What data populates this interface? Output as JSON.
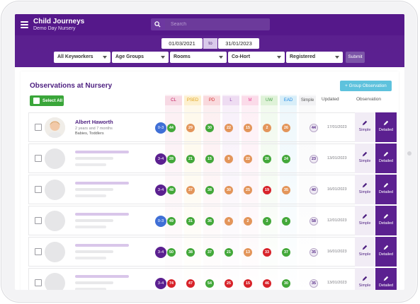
{
  "app": {
    "title": "Child Journeys",
    "subtitle": "Demo Day Nursery"
  },
  "search": {
    "placeholder": "Search"
  },
  "dates": {
    "from": "01/03/2021",
    "to_label": "to",
    "to": "31/01/2023"
  },
  "filters": [
    {
      "label": "All Keyworkers"
    },
    {
      "label": "Age Groups"
    },
    {
      "label": "Rooms"
    },
    {
      "label": "Co-Hort"
    },
    {
      "label": "Registered"
    }
  ],
  "submit_label": "Submit",
  "page_title": "Observations at Nursery",
  "group_observation_label": "+  Group Observation",
  "select_all_label": "Select All",
  "columns": [
    {
      "label": "CL",
      "color": "#f7d9e4",
      "text": "#c2185b"
    },
    {
      "label": "PSED",
      "color": "#fdf0cf",
      "text": "#e0a21b"
    },
    {
      "label": "PD",
      "color": "#f9d9dd",
      "text": "#d32f2f"
    },
    {
      "label": "L",
      "color": "#eedcf2",
      "text": "#8e44ad"
    },
    {
      "label": "M",
      "color": "#fbdbe9",
      "text": "#e84393"
    },
    {
      "label": "UW",
      "color": "#dff2d8",
      "text": "#43a047"
    },
    {
      "label": "EAD",
      "color": "#d8eef8",
      "text": "#1e88e5"
    },
    {
      "label": "Simple",
      "color": "#f2f2f4",
      "text": "#555555"
    }
  ],
  "updated_header": "Updated",
  "observation_header": "Observation",
  "btn_simple": "Simple",
  "btn_detailed": "Detailed",
  "colors": {
    "green": "#43a83a",
    "orange": "#e3955a",
    "red": "#d8232a",
    "band_blue": "#3f6fd6",
    "band_purple": "#5b2090"
  },
  "rows": [
    {
      "name": "Albert Haworth",
      "age": "2 years and 7 months",
      "rooms": "Babies, Toddlers",
      "band": "0-3",
      "band_color": "#3f6fd6",
      "scores": [
        {
          "v": "44",
          "c": "green"
        },
        {
          "v": "29",
          "c": "orange"
        },
        {
          "v": "30",
          "c": "green"
        },
        {
          "v": "22",
          "c": "orange"
        },
        {
          "v": "15",
          "c": "orange"
        },
        {
          "v": "2",
          "c": "orange"
        },
        {
          "v": "26",
          "c": "orange"
        }
      ],
      "simple": "44",
      "updated": "17/01/2023"
    },
    {
      "band": "3-4",
      "band_color": "#5b2090",
      "scores": [
        {
          "v": "28",
          "c": "green"
        },
        {
          "v": "21",
          "c": "green"
        },
        {
          "v": "15",
          "c": "green"
        },
        {
          "v": "9",
          "c": "orange"
        },
        {
          "v": "22",
          "c": "orange"
        },
        {
          "v": "26",
          "c": "green"
        },
        {
          "v": "24",
          "c": "green"
        }
      ],
      "simple": "23",
      "updated": "13/01/2023"
    },
    {
      "band": "3-4",
      "band_color": "#5b2090",
      "scores": [
        {
          "v": "48",
          "c": "green"
        },
        {
          "v": "37",
          "c": "orange"
        },
        {
          "v": "38",
          "c": "green"
        },
        {
          "v": "30",
          "c": "orange"
        },
        {
          "v": "25",
          "c": "orange"
        },
        {
          "v": "19",
          "c": "red"
        },
        {
          "v": "35",
          "c": "orange"
        }
      ],
      "simple": "40",
      "updated": "16/01/2023"
    },
    {
      "band": "0-3",
      "band_color": "#3f6fd6",
      "scores": [
        {
          "v": "49",
          "c": "green"
        },
        {
          "v": "31",
          "c": "green"
        },
        {
          "v": "36",
          "c": "green"
        },
        {
          "v": "4",
          "c": "orange"
        },
        {
          "v": "2",
          "c": "orange"
        },
        {
          "v": "3",
          "c": "green"
        },
        {
          "v": "9",
          "c": "green"
        }
      ],
      "simple": "58",
      "updated": "12/01/2023"
    },
    {
      "band": "3-4",
      "band_color": "#5b2090",
      "scores": [
        {
          "v": "50",
          "c": "green"
        },
        {
          "v": "38",
          "c": "green"
        },
        {
          "v": "37",
          "c": "green"
        },
        {
          "v": "21",
          "c": "green"
        },
        {
          "v": "13",
          "c": "orange"
        },
        {
          "v": "33",
          "c": "red"
        },
        {
          "v": "37",
          "c": "green"
        }
      ],
      "simple": "35",
      "updated": "16/01/2023"
    },
    {
      "band": "3-4",
      "band_color": "#5b2090",
      "scores": [
        {
          "v": "74",
          "c": "red"
        },
        {
          "v": "47",
          "c": "red"
        },
        {
          "v": "54",
          "c": "green"
        },
        {
          "v": "25",
          "c": "red"
        },
        {
          "v": "15",
          "c": "red"
        },
        {
          "v": "46",
          "c": "red"
        },
        {
          "v": "30",
          "c": "green"
        }
      ],
      "simple": "35",
      "updated": "13/01/2023"
    }
  ]
}
